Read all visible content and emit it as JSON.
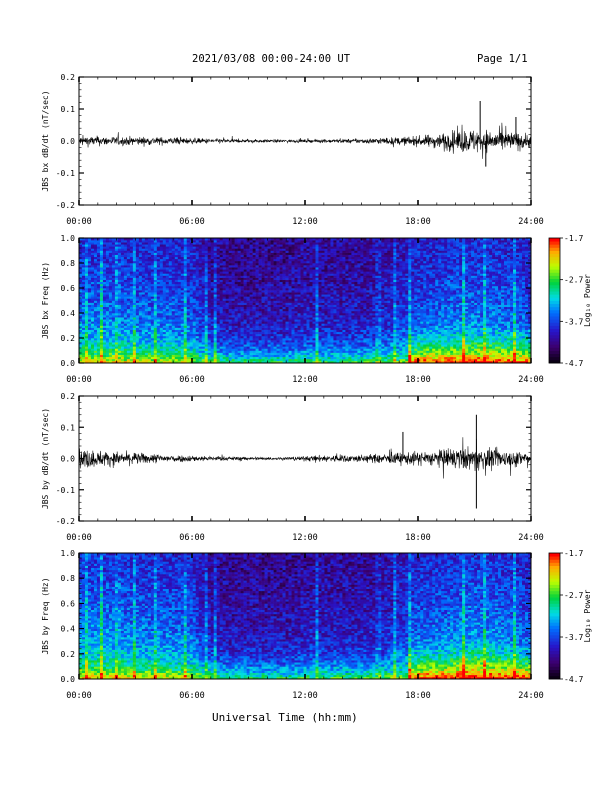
{
  "header": {
    "title": "2021/03/08  00:00-24:00 UT",
    "page": "Page 1/1"
  },
  "footer": {
    "xlabel": "Universal Time (hh:mm)"
  },
  "chart_data": [
    {
      "type": "line",
      "name": "bx-dbdt",
      "ylabel": "JBS bx dB/dt (nT/sec)",
      "xlim": [
        "00:00",
        "24:00"
      ],
      "xticks": [
        "00:00",
        "06:00",
        "12:00",
        "18:00",
        "24:00"
      ],
      "ylim": [
        -0.2,
        0.2
      ],
      "yticks": [
        "-0.2",
        "-0.1",
        "0.0",
        "0.1",
        "0.2"
      ],
      "x_hours": [
        0,
        1,
        2,
        3,
        4,
        5,
        6,
        7,
        8,
        9,
        10,
        11,
        12,
        13,
        14,
        15,
        16,
        17,
        18,
        19,
        20,
        21,
        22,
        23,
        24
      ],
      "envelope": [
        0.022,
        0.02,
        0.018,
        0.018,
        0.016,
        0.015,
        0.012,
        0.01,
        0.008,
        0.007,
        0.006,
        0.006,
        0.006,
        0.007,
        0.008,
        0.01,
        0.013,
        0.016,
        0.02,
        0.03,
        0.045,
        0.05,
        0.045,
        0.04,
        0.03
      ],
      "peaks": [
        {
          "x": 21.3,
          "y": 0.125
        },
        {
          "x": 21.6,
          "y": -0.08
        },
        {
          "x": 23.2,
          "y": 0.075
        }
      ]
    },
    {
      "type": "heatmap",
      "name": "bx-spectrogram",
      "ylabel": "JBS bx Freq (Hz)",
      "xlim": [
        "00:00",
        "24:00"
      ],
      "xticks": [
        "00:00",
        "06:00",
        "12:00",
        "18:00",
        "24:00"
      ],
      "ylim": [
        0,
        1.0
      ],
      "yticks": [
        "0.0",
        "0.2",
        "0.4",
        "0.6",
        "0.8",
        "1.0"
      ],
      "colorbar": {
        "label": "Log₁₀ Power",
        "ticks": [
          "-1.7",
          "-2.7",
          "-3.7",
          "-4.7"
        ],
        "range": [
          -4.7,
          -1.7
        ]
      },
      "activity_by_hour": [
        0.6,
        0.62,
        0.6,
        0.58,
        0.55,
        0.55,
        0.5,
        0.2,
        0.15,
        0.15,
        0.15,
        0.15,
        0.2,
        0.2,
        0.2,
        0.2,
        0.25,
        0.35,
        0.5,
        0.55,
        0.6,
        0.62,
        0.6,
        0.55,
        0.5
      ]
    },
    {
      "type": "line",
      "name": "by-dbdt",
      "ylabel": "JBS by dB/dt (nT/sec)",
      "xlim": [
        "00:00",
        "24:00"
      ],
      "xticks": [
        "00:00",
        "06:00",
        "12:00",
        "18:00",
        "24:00"
      ],
      "ylim": [
        -0.2,
        0.2
      ],
      "yticks": [
        "-0.2",
        "-0.1",
        "0.0",
        "0.1",
        "0.2"
      ],
      "x_hours": [
        0,
        1,
        2,
        3,
        4,
        5,
        6,
        7,
        8,
        9,
        10,
        11,
        12,
        13,
        14,
        15,
        16,
        17,
        18,
        19,
        20,
        21,
        22,
        23,
        24
      ],
      "envelope": [
        0.045,
        0.035,
        0.028,
        0.025,
        0.02,
        0.016,
        0.013,
        0.01,
        0.008,
        0.007,
        0.006,
        0.007,
        0.01,
        0.015,
        0.016,
        0.016,
        0.02,
        0.025,
        0.03,
        0.035,
        0.045,
        0.05,
        0.04,
        0.035,
        0.03
      ],
      "peaks": [
        {
          "x": 21.1,
          "y": 0.14
        },
        {
          "x": 21.1,
          "y": -0.16
        },
        {
          "x": 17.2,
          "y": 0.085
        }
      ]
    },
    {
      "type": "heatmap",
      "name": "by-spectrogram",
      "ylabel": "JBS by Freq (Hz)",
      "xlim": [
        "00:00",
        "24:00"
      ],
      "xticks": [
        "00:00",
        "06:00",
        "12:00",
        "18:00",
        "24:00"
      ],
      "ylim": [
        0,
        1.0
      ],
      "yticks": [
        "0.0",
        "0.2",
        "0.4",
        "0.6",
        "0.8",
        "1.0"
      ],
      "colorbar": {
        "label": "Log₁₀ Power",
        "ticks": [
          "-1.7",
          "-2.7",
          "-3.7",
          "-4.7"
        ],
        "range": [
          -4.7,
          -1.7
        ]
      },
      "activity_by_hour": [
        0.7,
        0.68,
        0.65,
        0.62,
        0.6,
        0.58,
        0.55,
        0.22,
        0.15,
        0.15,
        0.15,
        0.15,
        0.2,
        0.22,
        0.22,
        0.2,
        0.25,
        0.38,
        0.55,
        0.6,
        0.65,
        0.7,
        0.65,
        0.6,
        0.5
      ]
    }
  ]
}
